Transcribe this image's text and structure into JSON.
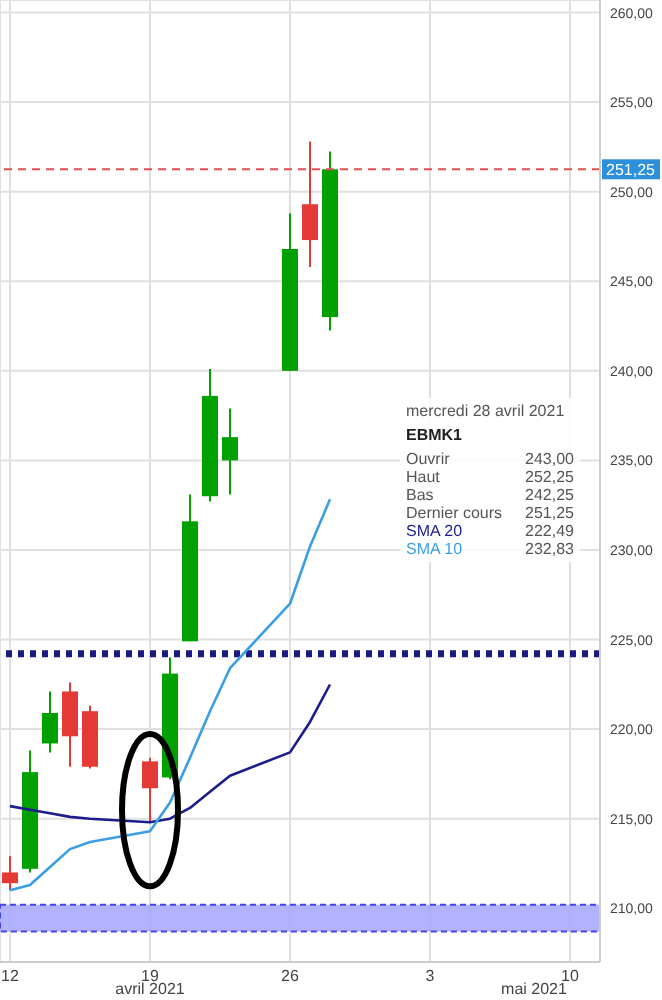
{
  "chart_data": {
    "type": "candlestick",
    "x": [
      "2021-04-12",
      "2021-04-13",
      "2021-04-14",
      "2021-04-15",
      "2021-04-16",
      "2021-04-19",
      "2021-04-20",
      "2021-04-21",
      "2021-04-22",
      "2021-04-23",
      "2021-04-26",
      "2021-04-27",
      "2021-04-28"
    ],
    "ohlc": [
      [
        212.0,
        212.9,
        211.0,
        211.4
      ],
      [
        212.2,
        218.8,
        212.0,
        217.6
      ],
      [
        219.2,
        222.1,
        218.7,
        220.9
      ],
      [
        222.1,
        222.6,
        217.9,
        219.6
      ],
      [
        221.0,
        221.3,
        217.8,
        217.9
      ],
      [
        218.2,
        218.4,
        214.8,
        216.7
      ],
      [
        217.3,
        224.0,
        217.2,
        223.1
      ],
      [
        224.9,
        233.1,
        224.9,
        231.6
      ],
      [
        233.0,
        240.1,
        232.7,
        238.6
      ],
      [
        235.0,
        237.9,
        233.1,
        236.3
      ],
      [
        240.0,
        248.8,
        240.0,
        246.8
      ],
      [
        249.3,
        252.8,
        245.8,
        247.3
      ],
      [
        243.0,
        252.25,
        242.25,
        251.25
      ]
    ],
    "colors": [
      "#e53935",
      "#00a000",
      "#00a000",
      "#e53935",
      "#e53935",
      "#e53935",
      "#00a000",
      "#00a000",
      "#00a000",
      "#00a000",
      "#00a000",
      "#e53935",
      "#00a000"
    ],
    "series": [
      {
        "name": "SMA 20",
        "type": "line",
        "color": "#1c1c8c",
        "values": [
          215.7,
          215.5,
          215.3,
          215.1,
          215.0,
          214.8,
          215.0,
          215.6,
          216.5,
          217.4,
          218.7,
          220.4,
          222.49
        ]
      },
      {
        "name": "SMA 10",
        "type": "line",
        "color": "#3a9ee4",
        "values": [
          211.0,
          211.3,
          212.3,
          213.3,
          213.7,
          214.3,
          215.9,
          218.4,
          221.0,
          223.4,
          227.0,
          230.2,
          232.83
        ]
      }
    ],
    "xlim": [
      "2021-04-11T12:00",
      "2021-05-11T12:00"
    ],
    "xticks": [
      {
        "value": "2021-04-12",
        "label": "12"
      },
      {
        "value": "2021-04-19",
        "label": "19"
      },
      {
        "value": "2021-04-26",
        "label": "26"
      },
      {
        "value": "2021-05-03",
        "label": "3"
      },
      {
        "value": "2021-05-10",
        "label": "10"
      }
    ],
    "ylim": [
      207,
      260.7
    ],
    "yticks": [
      {
        "value": 210,
        "label": "210,00"
      },
      {
        "value": 215,
        "label": "215,00"
      },
      {
        "value": 220,
        "label": "220,00"
      },
      {
        "value": 225,
        "label": "225,00"
      },
      {
        "value": 230,
        "label": "230,00"
      },
      {
        "value": 235,
        "label": "235,00"
      },
      {
        "value": 240,
        "label": "240,00"
      },
      {
        "value": 245,
        "label": "245,00"
      },
      {
        "value": 250,
        "label": "250,00"
      },
      {
        "value": 255,
        "label": "255,00"
      },
      {
        "value": 260,
        "label": "260,00"
      }
    ],
    "ref_lines": [
      {
        "axis": "y",
        "value": 251.25,
        "label": "251,25",
        "color": "#e05050",
        "line_style": "dashed"
      },
      {
        "axis": "y",
        "value": 224.2,
        "color": "#1a1a80",
        "line_style": "dotted"
      }
    ],
    "bands": [
      {
        "axis": "y",
        "from": 208.7,
        "to": 210.2,
        "color": "#aaaaff"
      }
    ],
    "annotations": [
      "mercredi 28 avril 2021",
      "EBMK1",
      "Ouvrir",
      "243,00",
      "Haut",
      "252,25",
      "Bas",
      "242,25",
      "Dernier cours",
      "251,25",
      "222,49",
      "232,83",
      "avril 2021",
      "mai 2021"
    ],
    "grid": true,
    "legend": false,
    "marker": "none"
  }
}
